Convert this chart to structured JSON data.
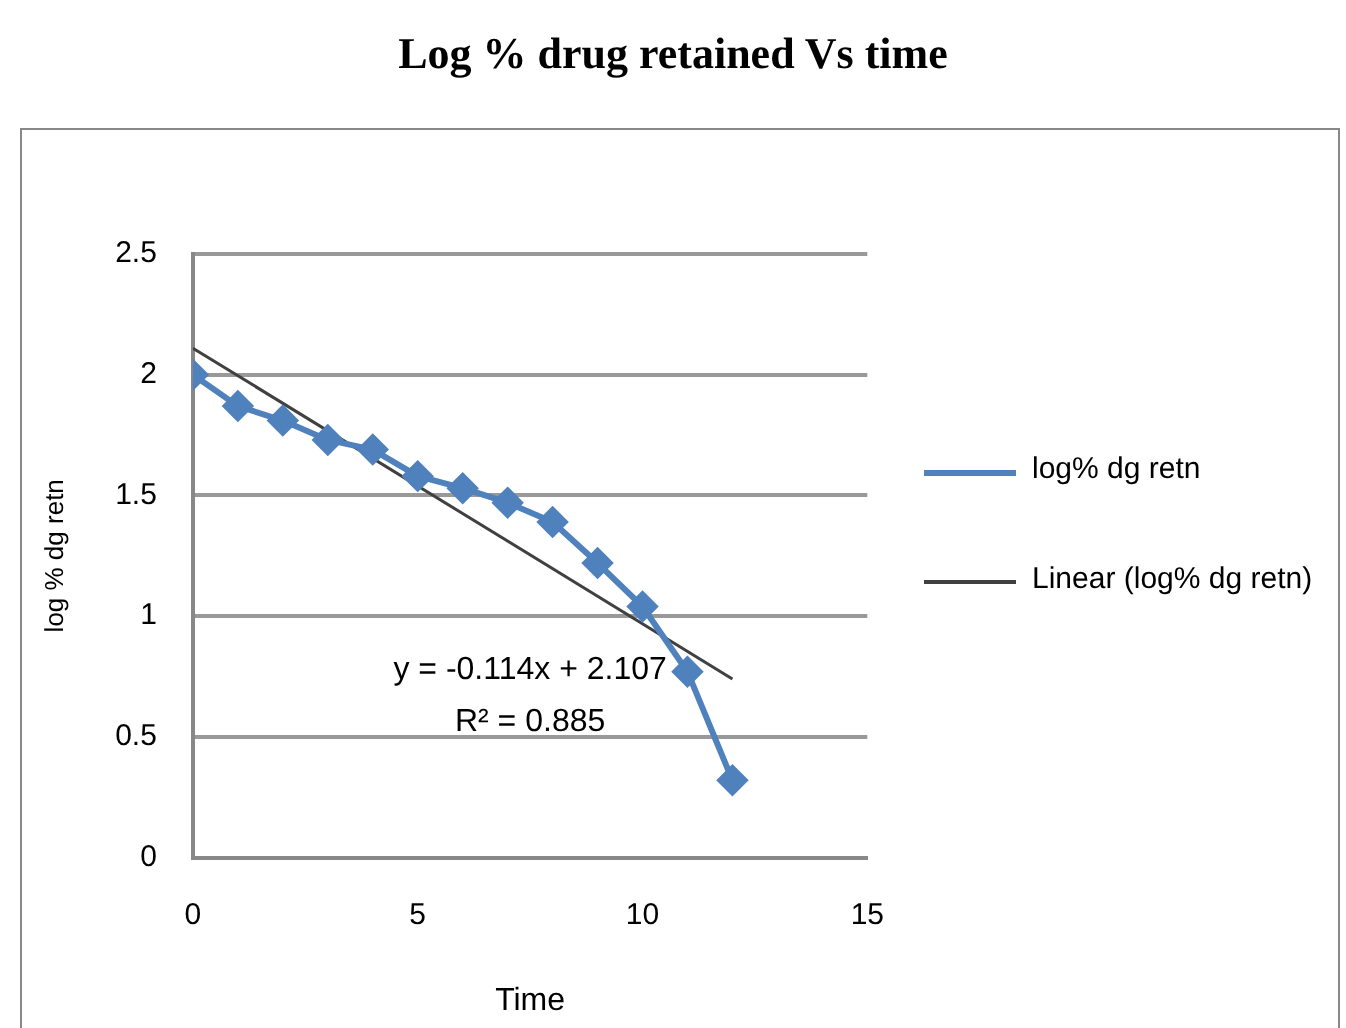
{
  "chart_data": {
    "type": "line",
    "title": "Log % drug retained Vs time",
    "xlabel": "Time",
    "ylabel": "log % dg retn",
    "series": [
      {
        "name": "log% dg retn",
        "color": "#4f81bd",
        "x": [
          0,
          1,
          2,
          3,
          4,
          5,
          6,
          7,
          8,
          9,
          10,
          11,
          12
        ],
        "values": [
          2.0,
          1.87,
          1.81,
          1.73,
          1.69,
          1.58,
          1.53,
          1.47,
          1.39,
          1.22,
          1.04,
          0.77,
          0.32
        ],
        "marker": "diamond"
      },
      {
        "name": "Linear (log% dg retn)",
        "color": "#404040",
        "type": "line",
        "x": [
          0,
          12
        ],
        "values": [
          2.11,
          0.74
        ],
        "marker": "none"
      }
    ],
    "xlim": [
      0,
      15
    ],
    "xticks": [
      0,
      5,
      10,
      15
    ],
    "ylim": [
      0,
      2.5
    ],
    "yticks": [
      0,
      0.5,
      1,
      1.5,
      2,
      2.5
    ],
    "grid": "y",
    "legend": "right",
    "annotations": [
      "y = -0.114x + 2.107",
      "R² = 0.885"
    ]
  }
}
